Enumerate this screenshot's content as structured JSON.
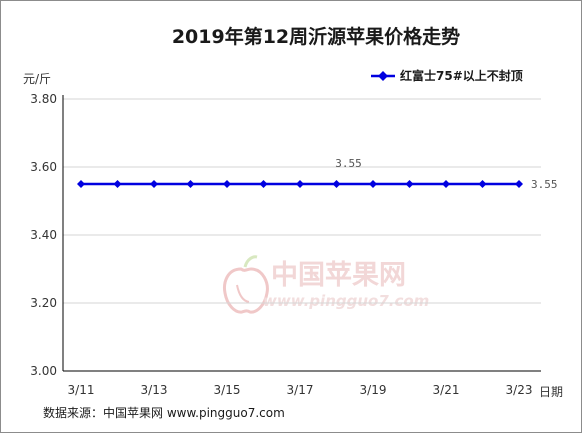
{
  "source": "数据来源：中国苹果网 www.pingguo7.com",
  "watermark": {
    "cn": "中国苹果网",
    "url": "www.pingguo7.com"
  },
  "colors": {
    "series": "#0000e0",
    "grid": "#d6d6d6",
    "axis": "#000000"
  },
  "chart_data": {
    "type": "line",
    "title": "2019年第12周沂源苹果价格走势",
    "ylabel": "元/斤",
    "xlabel": "日期",
    "ylim": [
      3.0,
      3.8
    ],
    "yticks": [
      "3.00",
      "3.20",
      "3.40",
      "3.60",
      "3.80"
    ],
    "ytick_values": [
      3.0,
      3.2,
      3.4,
      3.6,
      3.8
    ],
    "x": [
      "3/11",
      "3/12",
      "3/13",
      "3/14",
      "3/15",
      "3/16",
      "3/17",
      "3/18",
      "3/19",
      "3/20",
      "3/21",
      "3/22",
      "3/23"
    ],
    "xtick_labels": [
      "3/11",
      "",
      "3/13",
      "",
      "3/15",
      "",
      "3/17",
      "",
      "3/19",
      "",
      "3/21",
      "",
      "3/23"
    ],
    "grid": "horizontal",
    "legend": "top-right",
    "series": [
      {
        "name": "红富士75#以上不封顶",
        "color": "#0000e0",
        "values": [
          3.55,
          3.55,
          3.55,
          3.55,
          3.55,
          3.55,
          3.55,
          3.55,
          3.55,
          3.55,
          3.55,
          3.55,
          3.55
        ]
      }
    ],
    "data_labels": [
      {
        "index": 7,
        "text": "3.55",
        "position": "above"
      },
      {
        "index": 12,
        "text": "3.55",
        "position": "right"
      }
    ]
  }
}
